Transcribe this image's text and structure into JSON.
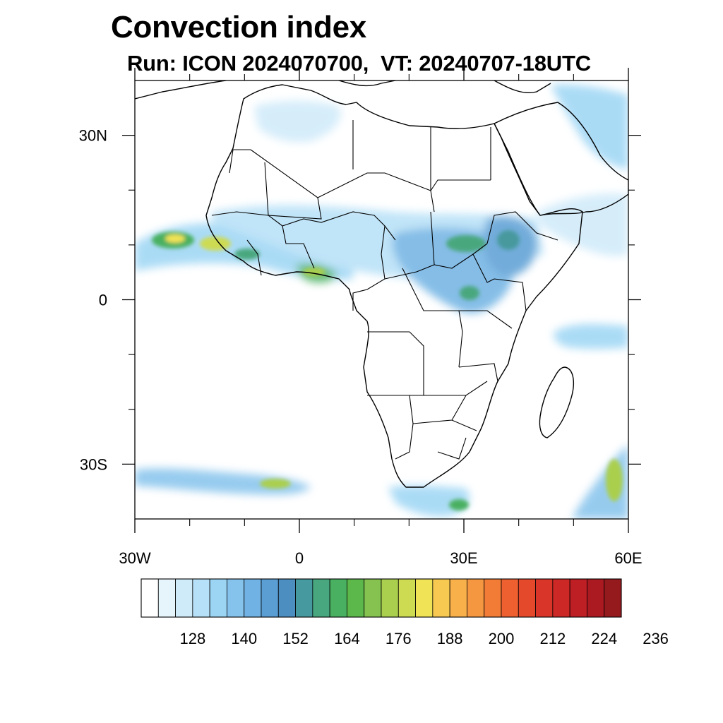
{
  "title": "Convection index",
  "subtitle": "Run: ICON 2024070700,  VT: 20240707-18UTC",
  "map": {
    "lon_range": [
      -30,
      60
    ],
    "lat_range": [
      -40,
      40
    ],
    "lat_labels": [
      {
        "lat": 30,
        "text": "30N"
      },
      {
        "lat": 0,
        "text": "0"
      },
      {
        "lat": -30,
        "text": "30S"
      }
    ],
    "lon_labels": [
      {
        "lon": -30,
        "text": "30W"
      },
      {
        "lon": 0,
        "text": "0"
      },
      {
        "lon": 30,
        "text": "30E"
      },
      {
        "lon": 60,
        "text": "60E"
      }
    ],
    "minor_lon_ticks": [
      -20,
      -10,
      10,
      20,
      40,
      50
    ],
    "minor_lat_ticks": [
      20,
      10,
      -10,
      -20
    ]
  },
  "colorbar": {
    "labels": [
      "128",
      "140",
      "152",
      "164",
      "176",
      "188",
      "200",
      "212",
      "224",
      "236"
    ],
    "colors": [
      "#ffffff",
      "#e6f5fc",
      "#cfeaf9",
      "#b6e0f7",
      "#9cd5f4",
      "#85c3ec",
      "#70b2e3",
      "#5a9ed4",
      "#4d8ec0",
      "#46999e",
      "#48a77e",
      "#49b061",
      "#5cb84b",
      "#86c24f",
      "#aacf4e",
      "#cddb52",
      "#f1e356",
      "#f7c950",
      "#f7b04a",
      "#f59640",
      "#f27b35",
      "#ee6030",
      "#e4492c",
      "#da3529",
      "#cc2826",
      "#bd1f24",
      "#ab1a21",
      "#951a1e"
    ]
  },
  "convection_areas": [
    {
      "lon": -25,
      "lat": 9,
      "level": 0.75
    },
    {
      "lon": -18,
      "lat": 9,
      "level": 0.8
    },
    {
      "lon": 33,
      "lat": 7,
      "level": 0.45
    },
    {
      "lon": 37,
      "lat": 9,
      "level": 0.5
    },
    {
      "lon": 29,
      "lat": 2,
      "level": 0.45
    },
    {
      "lon": 2,
      "lat": 6,
      "level": 0.4
    },
    {
      "lon": -3,
      "lat": -34,
      "level": 0.6
    },
    {
      "lon": 58,
      "lat": -33,
      "level": 0.75
    },
    {
      "lon": 55,
      "lat": -6,
      "level": 0.3
    }
  ]
}
